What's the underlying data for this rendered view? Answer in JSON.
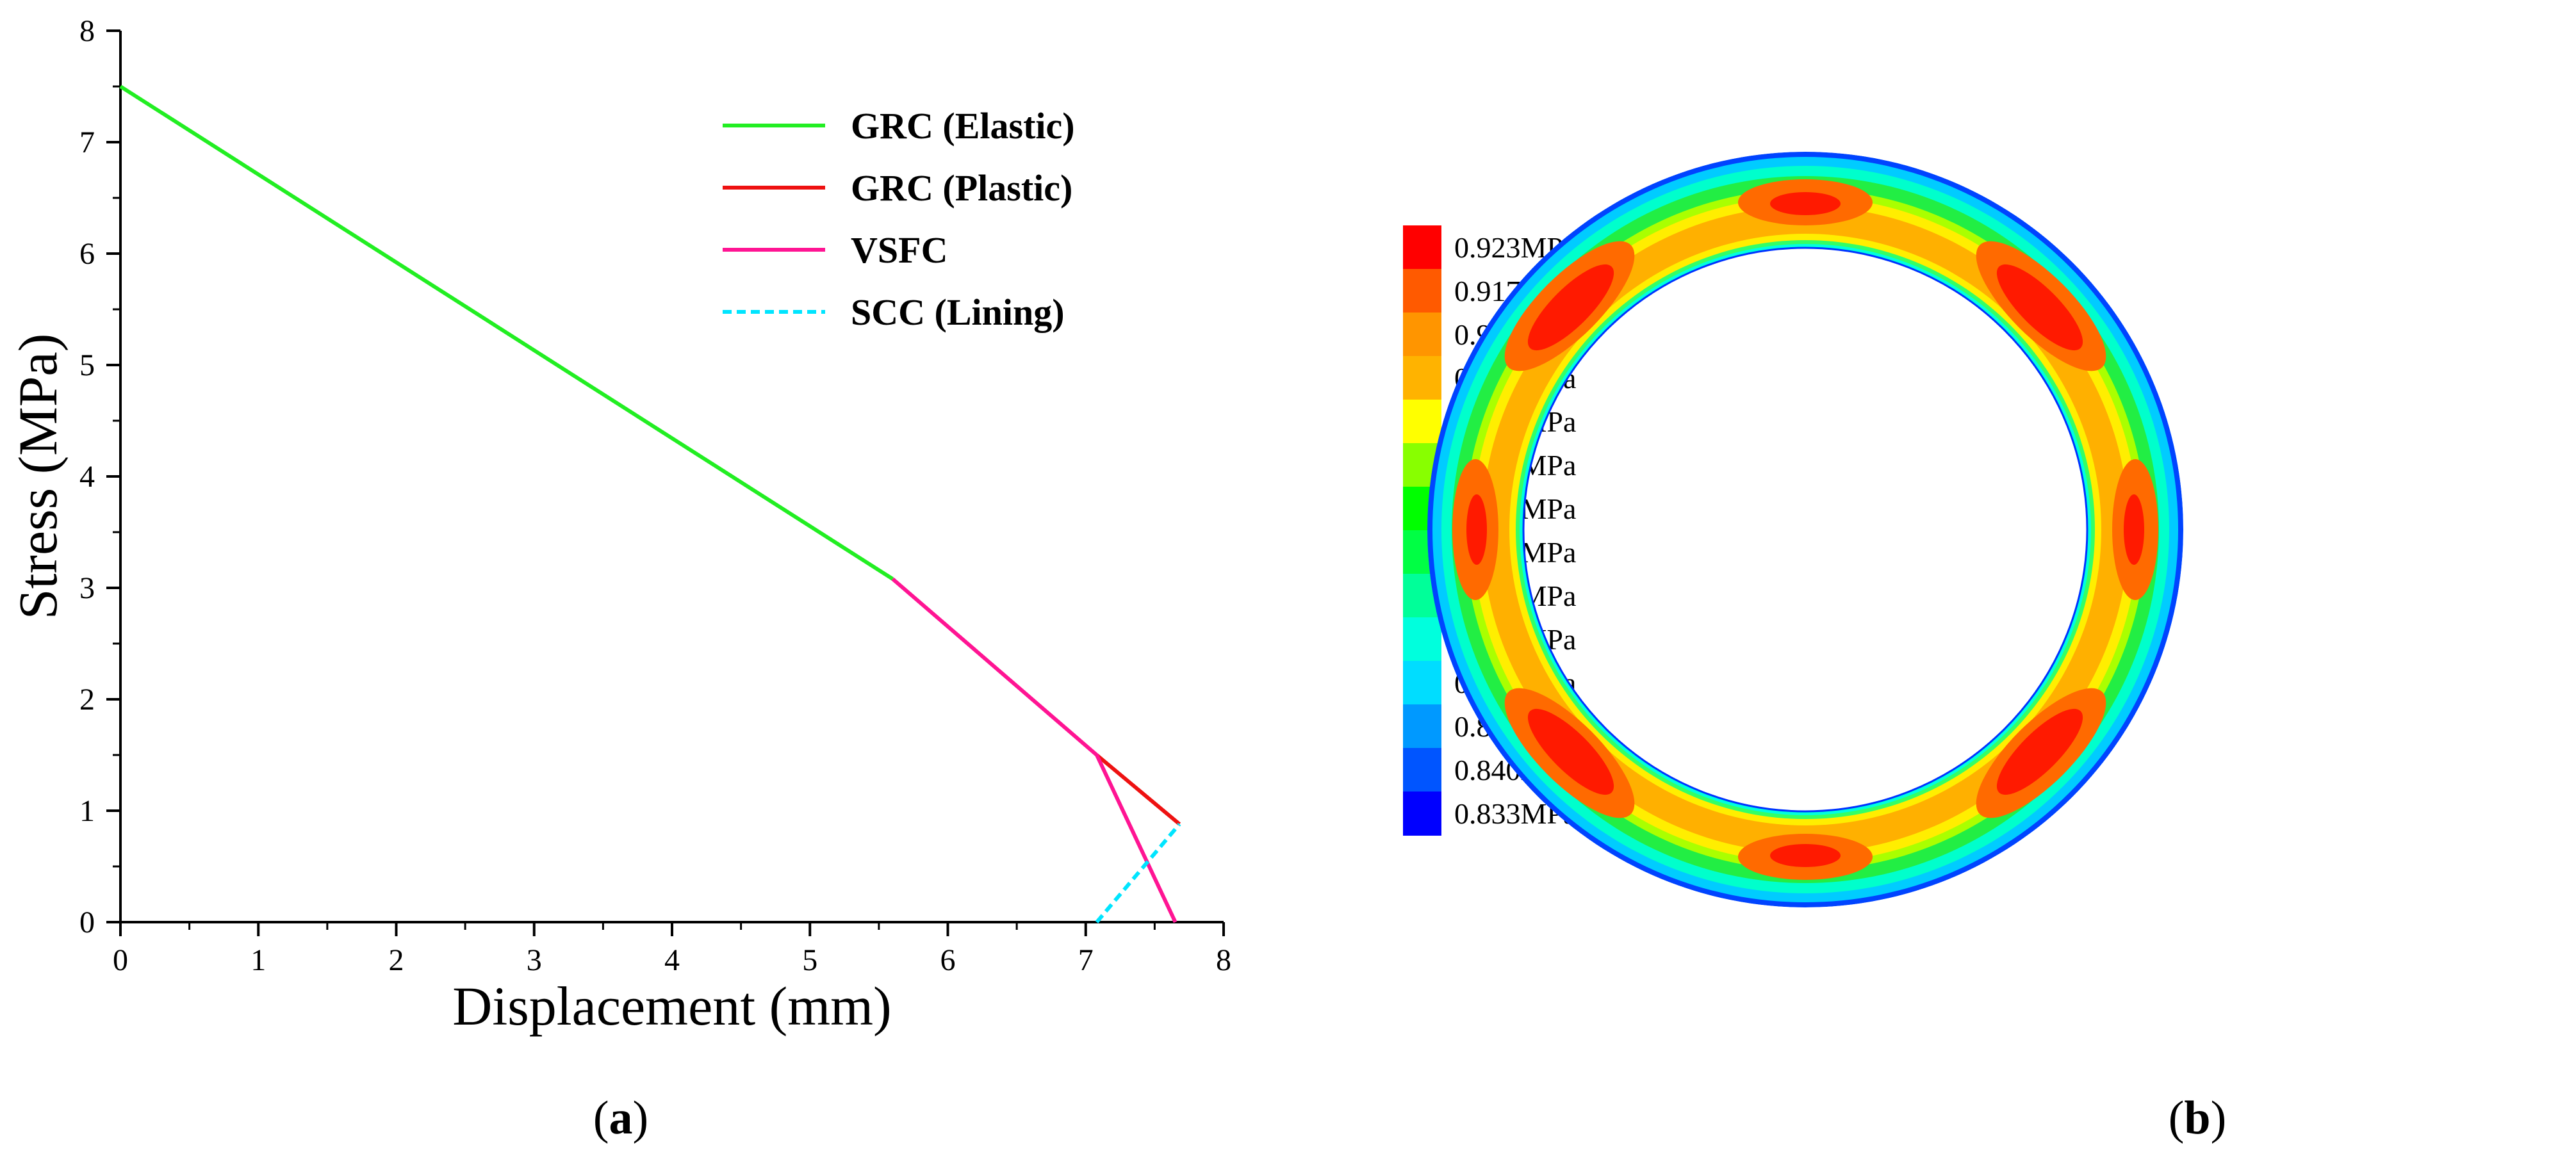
{
  "chart_data": [
    {
      "type": "line",
      "xlabel": "Displacement (mm)",
      "ylabel": "Stress (MPa)",
      "xlim": [
        0,
        8
      ],
      "ylim": [
        0,
        8
      ],
      "xticks": [
        0,
        1,
        2,
        3,
        4,
        5,
        6,
        7,
        8
      ],
      "yticks": [
        0,
        1,
        2,
        3,
        4,
        5,
        6,
        7,
        8
      ],
      "grid": false,
      "legend_position": "top-center",
      "series": [
        {
          "name": "GRC (Elastic)",
          "color": "#22ee22",
          "style": "solid",
          "x": [
            0,
            5.6
          ],
          "y": [
            7.5,
            3.08
          ]
        },
        {
          "name": "GRC (Plastic)",
          "color": "#ee1111",
          "style": "solid",
          "x": [
            7.08,
            7.68
          ],
          "y": [
            1.5,
            0.88
          ]
        },
        {
          "name": "VSFC",
          "color": "#ff1493",
          "style": "solid",
          "x": [
            5.6,
            7.08,
            7.65
          ],
          "y": [
            3.08,
            1.5,
            0.0
          ]
        },
        {
          "name": "SCC (Lining)",
          "color": "#00e5ff",
          "style": "dashed",
          "x": [
            7.08,
            7.68
          ],
          "y": [
            0.0,
            0.88
          ]
        }
      ]
    },
    {
      "type": "heatmap",
      "colorbar": {
        "entries": [
          {
            "label": "0.923MPa",
            "color": "#ff0000"
          },
          {
            "label": "0.917MPa",
            "color": "#ff5a00"
          },
          {
            "label": "0.910MPa",
            "color": "#ff9500"
          },
          {
            "label": "0.903MPa",
            "color": "#ffb300"
          },
          {
            "label": "0.896MPa",
            "color": "#ffff00"
          },
          {
            "label": "0.889MPa",
            "color": "#88ff00"
          },
          {
            "label": "0.882MPa",
            "color": "#00ff00"
          },
          {
            "label": "0.875MPa",
            "color": "#00ff44"
          },
          {
            "label": "0.868MPa",
            "color": "#00ff99"
          },
          {
            "label": "0.861MPa",
            "color": "#00ffdd"
          },
          {
            "label": "0.854MPa",
            "color": "#00ddff"
          },
          {
            "label": "0.847MPa",
            "color": "#0099ff"
          },
          {
            "label": "0.840MPa",
            "color": "#0055ff"
          },
          {
            "label": "0.833MPa",
            "color": "#0000ff"
          }
        ]
      }
    }
  ],
  "panel_labels": {
    "a": {
      "open": "(",
      "letter": "a",
      "close": ")"
    },
    "b": {
      "open": "(",
      "letter": "b",
      "close": ")"
    }
  }
}
